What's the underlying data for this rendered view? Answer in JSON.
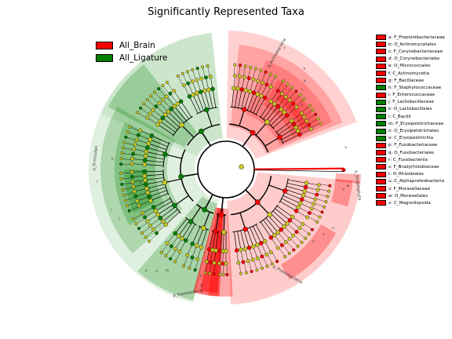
{
  "title": "Significantly Represented Taxa",
  "legend": [
    {
      "label": "All_Brain",
      "color": "#ff0000"
    },
    {
      "label": "All_Ligature",
      "color": "#008000"
    }
  ],
  "colors": {
    "brain": "#ff0000",
    "ligature": "#008000",
    "node_neutral": "#c8c820",
    "edge": "#000000"
  },
  "chart_data": {
    "type": "cladogram",
    "title": "Significantly Represented Taxa",
    "groups": [
      "All_Brain",
      "All_Ligature"
    ],
    "taxa": [
      {
        "key": "a",
        "name": "F_Propionibacteriaceae",
        "group": "All_Brain"
      },
      {
        "key": "b",
        "name": "O_Actinomycetales",
        "group": "All_Brain"
      },
      {
        "key": "c",
        "name": "F_Corynebacteriaceae",
        "group": "All_Brain"
      },
      {
        "key": "d",
        "name": "O_Corynebacteriales",
        "group": "All_Brain"
      },
      {
        "key": "e",
        "name": "O_Micrococcales",
        "group": "All_Brain"
      },
      {
        "key": "f",
        "name": "C_Actinomycetia",
        "group": "All_Brain"
      },
      {
        "key": "g",
        "name": "F_Bacillaceae",
        "group": "All_Brain"
      },
      {
        "key": "h",
        "name": "F_Staphylococcaceae",
        "group": "All_Ligature"
      },
      {
        "key": "i",
        "name": "F_Enterococcaceae",
        "group": "All_Brain"
      },
      {
        "key": "j",
        "name": "F_Lactobacillaceae",
        "group": "All_Ligature"
      },
      {
        "key": "k",
        "name": "O_Lactobacillales",
        "group": "All_Ligature"
      },
      {
        "key": "l",
        "name": "C_Bacilli",
        "group": "All_Ligature"
      },
      {
        "key": "m",
        "name": "F_Erysipelotrichaceae",
        "group": "All_Ligature"
      },
      {
        "key": "n",
        "name": "O_Erysipelotrichales",
        "group": "All_Ligature"
      },
      {
        "key": "o",
        "name": "C_Erysipelotrichia",
        "group": "All_Ligature"
      },
      {
        "key": "p",
        "name": "F_Fusobacteriaceae",
        "group": "All_Brain"
      },
      {
        "key": "q",
        "name": "O_Fusobacteriales",
        "group": "All_Brain"
      },
      {
        "key": "r",
        "name": "C_Fusobacteriia",
        "group": "All_Brain"
      },
      {
        "key": "s",
        "name": "F_Bradyrhizobiaceae",
        "group": "All_Brain"
      },
      {
        "key": "t",
        "name": "O_Rhizobiales",
        "group": "All_Brain"
      },
      {
        "key": "u",
        "name": "C_Alphaproteobacteria",
        "group": "All_Brain"
      },
      {
        "key": "v",
        "name": "F_Moraxellaceae",
        "group": "All_Brain"
      },
      {
        "key": "w",
        "name": "O_Moraxellales",
        "group": "All_Brain"
      },
      {
        "key": "x",
        "name": "C_Magnoliopsida",
        "group": "All_Brain"
      }
    ],
    "phyla": [
      {
        "name": "p_Actinobacteria",
        "group": "All_Brain"
      },
      {
        "name": "p_Firmicutes",
        "group": "All_Ligature"
      },
      {
        "name": "p_Fusobacteria",
        "group": "All_Brain"
      },
      {
        "name": "p_Proteobacteria",
        "group": "All_Brain"
      },
      {
        "name": "p_Streptophyta",
        "group": "All_Brain"
      }
    ]
  }
}
